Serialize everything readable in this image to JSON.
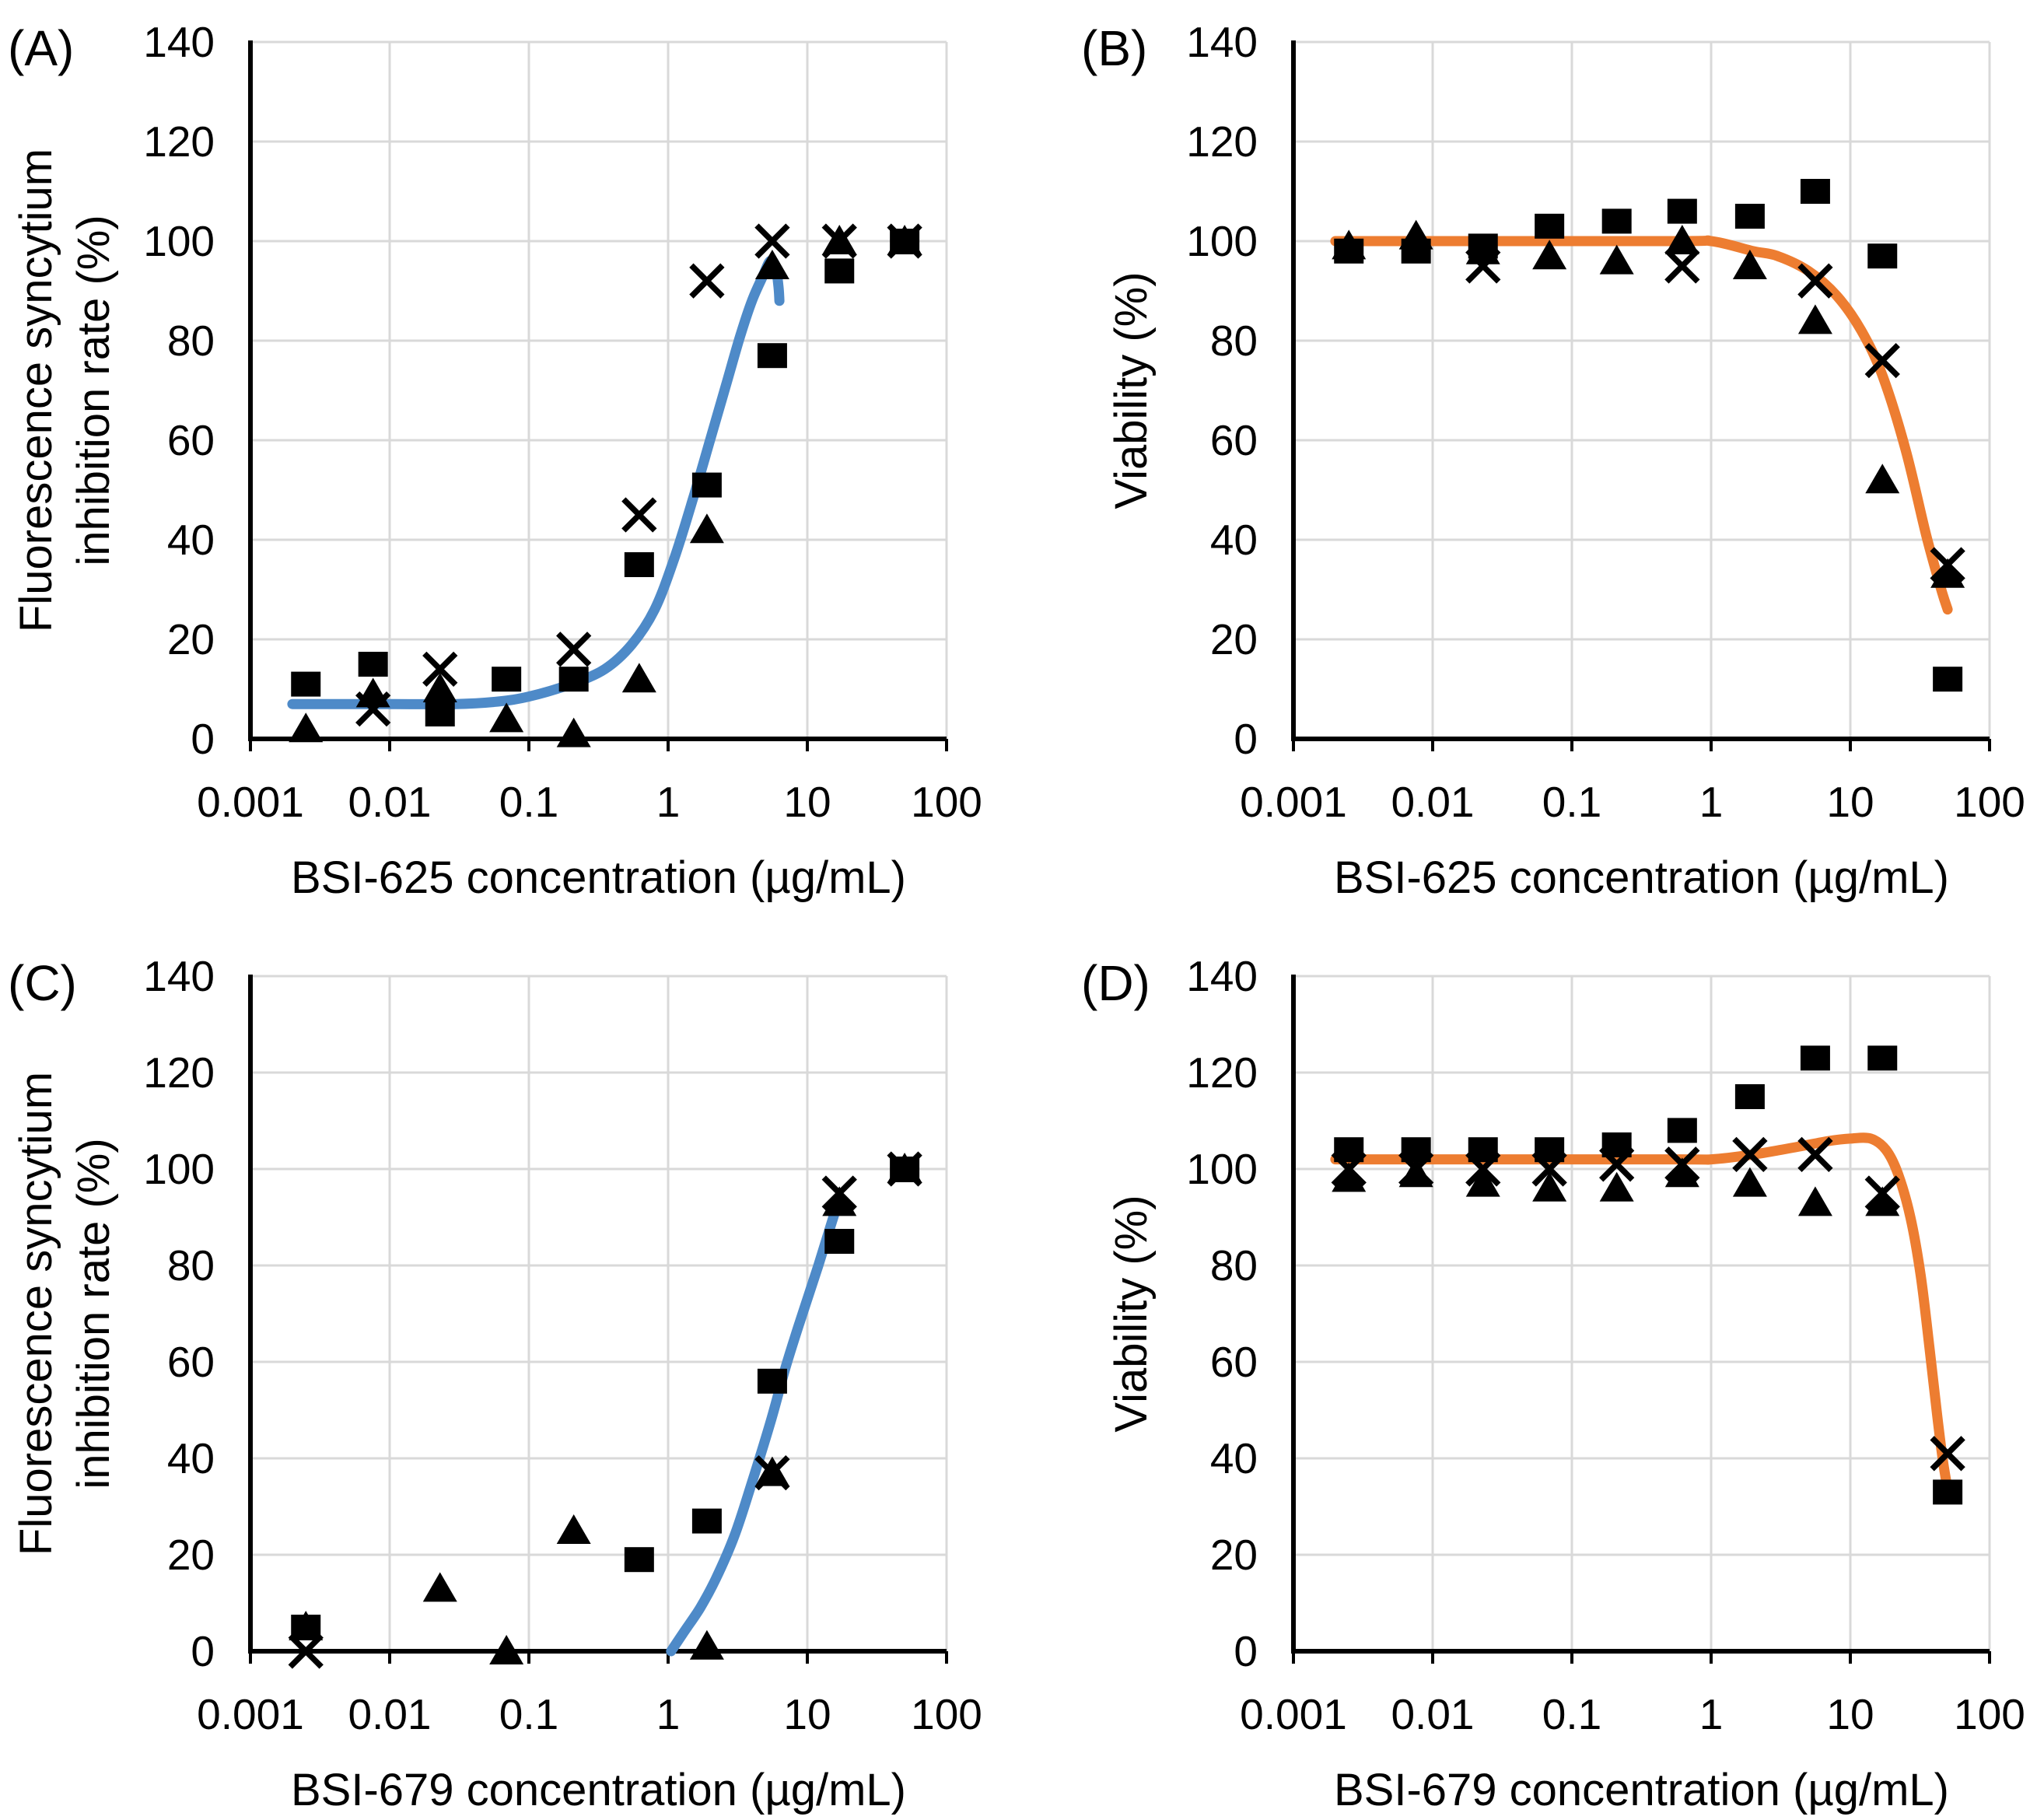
{
  "figure": {
    "background": "#ffffff",
    "grid_color": "#d9d9d9",
    "axis_color": "#000000",
    "marker_color": "#000000",
    "curve_blue": "#4e8ac8",
    "curve_orange": "#ed7d31"
  },
  "chart_data": [
    {
      "id": "A",
      "panel_label": "(A)",
      "type": "scatter",
      "xscale": "log",
      "xlabel": "BSI-625 concentration (µg/mL)",
      "ylabel_lines": [
        "Fluorescence syncytium",
        "inhibition rate (%)"
      ],
      "xlim": [
        0.001,
        100
      ],
      "ylim": [
        0,
        140
      ],
      "grid": true,
      "legend": "none",
      "yticks": [
        0,
        20,
        40,
        60,
        80,
        100,
        120,
        140
      ],
      "xticks": [
        0.001,
        0.01,
        0.1,
        1,
        10,
        100
      ],
      "xtick_labels": [
        "0.001",
        "0.01",
        "0.1",
        "1",
        "10",
        "100"
      ],
      "x": [
        0.0025,
        0.0076,
        0.023,
        0.069,
        0.21,
        0.62,
        1.9,
        5.6,
        17,
        50
      ],
      "series": [
        {
          "name": "replicate-square",
          "marker": "square",
          "values": [
            11,
            15,
            5,
            12,
            12,
            35,
            51,
            77,
            94,
            100
          ]
        },
        {
          "name": "replicate-triangle",
          "marker": "triangle",
          "values": [
            2,
            9,
            10,
            4,
            1,
            12,
            42,
            95,
            100,
            100
          ]
        },
        {
          "name": "replicate-x",
          "marker": "x",
          "values": [
            null,
            6,
            14,
            null,
            18,
            45,
            92,
            100,
            100,
            100
          ]
        }
      ],
      "fit_curve": {
        "color_key": "curve_blue",
        "points": [
          [
            0.002,
            7
          ],
          [
            0.01,
            7
          ],
          [
            0.03,
            7
          ],
          [
            0.06,
            7.5
          ],
          [
            0.1,
            8.5
          ],
          [
            0.2,
            11
          ],
          [
            0.35,
            14
          ],
          [
            0.55,
            19
          ],
          [
            0.8,
            26
          ],
          [
            1.1,
            36
          ],
          [
            1.5,
            48
          ],
          [
            2,
            60
          ],
          [
            2.6,
            71
          ],
          [
            3.3,
            81
          ],
          [
            4,
            88
          ],
          [
            4.8,
            93
          ],
          [
            5.4,
            96
          ],
          [
            5.9,
            95
          ],
          [
            6.2,
            91
          ],
          [
            6.3,
            88
          ]
        ]
      }
    },
    {
      "id": "B",
      "panel_label": "(B)",
      "type": "scatter",
      "xscale": "log",
      "xlabel": "BSI-625 concentration (µg/mL)",
      "ylabel_lines": [
        "Viability (%)"
      ],
      "xlim": [
        0.001,
        100
      ],
      "ylim": [
        0,
        140
      ],
      "grid": true,
      "legend": "none",
      "yticks": [
        0,
        20,
        40,
        60,
        80,
        100,
        120,
        140
      ],
      "xticks": [
        0.001,
        0.01,
        0.1,
        1,
        10,
        100
      ],
      "xtick_labels": [
        "0.001",
        "0.01",
        "0.1",
        "1",
        "10",
        "100"
      ],
      "x": [
        0.0025,
        0.0076,
        0.023,
        0.069,
        0.21,
        0.62,
        1.9,
        5.6,
        17,
        50
      ],
      "series": [
        {
          "name": "replicate-square",
          "marker": "square",
          "values": [
            98,
            98,
            99,
            103,
            104,
            106,
            105,
            110,
            97,
            12
          ]
        },
        {
          "name": "replicate-triangle",
          "marker": "triangle",
          "values": [
            99,
            101,
            98,
            97,
            96,
            100,
            95,
            84,
            52,
            33
          ]
        },
        {
          "name": "replicate-x",
          "marker": "x",
          "values": [
            null,
            null,
            95,
            null,
            null,
            95,
            null,
            92,
            76,
            35
          ]
        }
      ],
      "fit_curve": {
        "color_key": "curve_orange",
        "points": [
          [
            0.002,
            100
          ],
          [
            0.5,
            100
          ],
          [
            1,
            100
          ],
          [
            2,
            98
          ],
          [
            3,
            97
          ],
          [
            5,
            94
          ],
          [
            8,
            89
          ],
          [
            12,
            82
          ],
          [
            17,
            73
          ],
          [
            25,
            58
          ],
          [
            35,
            41
          ],
          [
            45,
            30
          ],
          [
            50,
            26
          ]
        ]
      }
    },
    {
      "id": "C",
      "panel_label": "(C)",
      "type": "scatter",
      "xscale": "log",
      "xlabel": "BSI-679 concentration (µg/mL)",
      "ylabel_lines": [
        "Fluorescence syncytium",
        "inhibition rate (%)"
      ],
      "xlim": [
        0.001,
        100
      ],
      "ylim": [
        0,
        140
      ],
      "grid": true,
      "legend": "none",
      "yticks": [
        0,
        20,
        40,
        60,
        80,
        100,
        120,
        140
      ],
      "xticks": [
        0.001,
        0.01,
        0.1,
        1,
        10,
        100
      ],
      "xtick_labels": [
        "0.001",
        "0.01",
        "0.1",
        "1",
        "10",
        "100"
      ],
      "x": [
        0.0025,
        0.0076,
        0.023,
        0.069,
        0.21,
        0.62,
        1.9,
        5.6,
        17,
        50
      ],
      "series": [
        {
          "name": "replicate-square",
          "marker": "square",
          "values": [
            5,
            null,
            null,
            null,
            null,
            19,
            27,
            56,
            85,
            100
          ]
        },
        {
          "name": "replicate-triangle",
          "marker": "triangle",
          "values": [
            5,
            null,
            13,
            0,
            25,
            null,
            1,
            37,
            93,
            100
          ]
        },
        {
          "name": "replicate-x",
          "marker": "x",
          "values": [
            0,
            null,
            null,
            null,
            null,
            null,
            null,
            37,
            95,
            100
          ]
        }
      ],
      "fit_curve": {
        "color_key": "curve_blue",
        "points": [
          [
            1.05,
            0
          ],
          [
            1.3,
            4
          ],
          [
            1.7,
            9
          ],
          [
            2.2,
            15
          ],
          [
            3,
            24
          ],
          [
            4,
            35
          ],
          [
            5.5,
            48
          ],
          [
            7,
            59
          ],
          [
            9,
            69
          ],
          [
            12,
            80
          ],
          [
            15,
            89
          ],
          [
            17,
            94
          ]
        ]
      }
    },
    {
      "id": "D",
      "panel_label": "(D)",
      "type": "scatter",
      "xscale": "log",
      "xlabel": "BSI-679 concentration (µg/mL)",
      "ylabel_lines": [
        "Viability (%)"
      ],
      "xlim": [
        0.001,
        100
      ],
      "ylim": [
        0,
        140
      ],
      "grid": true,
      "legend": "none",
      "yticks": [
        0,
        20,
        40,
        60,
        80,
        100,
        120,
        140
      ],
      "xticks": [
        0.001,
        0.01,
        0.1,
        1,
        10,
        100
      ],
      "xtick_labels": [
        "0.001",
        "0.01",
        "0.1",
        "1",
        "10",
        "100"
      ],
      "x": [
        0.0025,
        0.0076,
        0.023,
        0.069,
        0.21,
        0.62,
        1.9,
        5.6,
        17,
        50
      ],
      "series": [
        {
          "name": "replicate-square",
          "marker": "square",
          "values": [
            104,
            104,
            104,
            104,
            105,
            108,
            115,
            123,
            123,
            33
          ]
        },
        {
          "name": "replicate-triangle",
          "marker": "triangle",
          "values": [
            98,
            99,
            97,
            96,
            96,
            99,
            97,
            93,
            93,
            null
          ]
        },
        {
          "name": "replicate-x",
          "marker": "x",
          "values": [
            100,
            100,
            100,
            100,
            101,
            101,
            103,
            103,
            95,
            41
          ]
        }
      ],
      "fit_curve": {
        "color_key": "curve_orange",
        "points": [
          [
            0.002,
            102
          ],
          [
            0.5,
            102
          ],
          [
            1,
            102
          ],
          [
            2,
            103
          ],
          [
            4,
            104.5
          ],
          [
            7,
            105.8
          ],
          [
            10,
            106.3
          ],
          [
            14,
            106.3
          ],
          [
            18,
            104
          ],
          [
            22,
            99
          ],
          [
            27,
            90
          ],
          [
            32,
            78
          ],
          [
            37,
            63
          ],
          [
            42,
            49
          ],
          [
            46,
            40
          ],
          [
            49,
            35
          ]
        ]
      }
    }
  ]
}
